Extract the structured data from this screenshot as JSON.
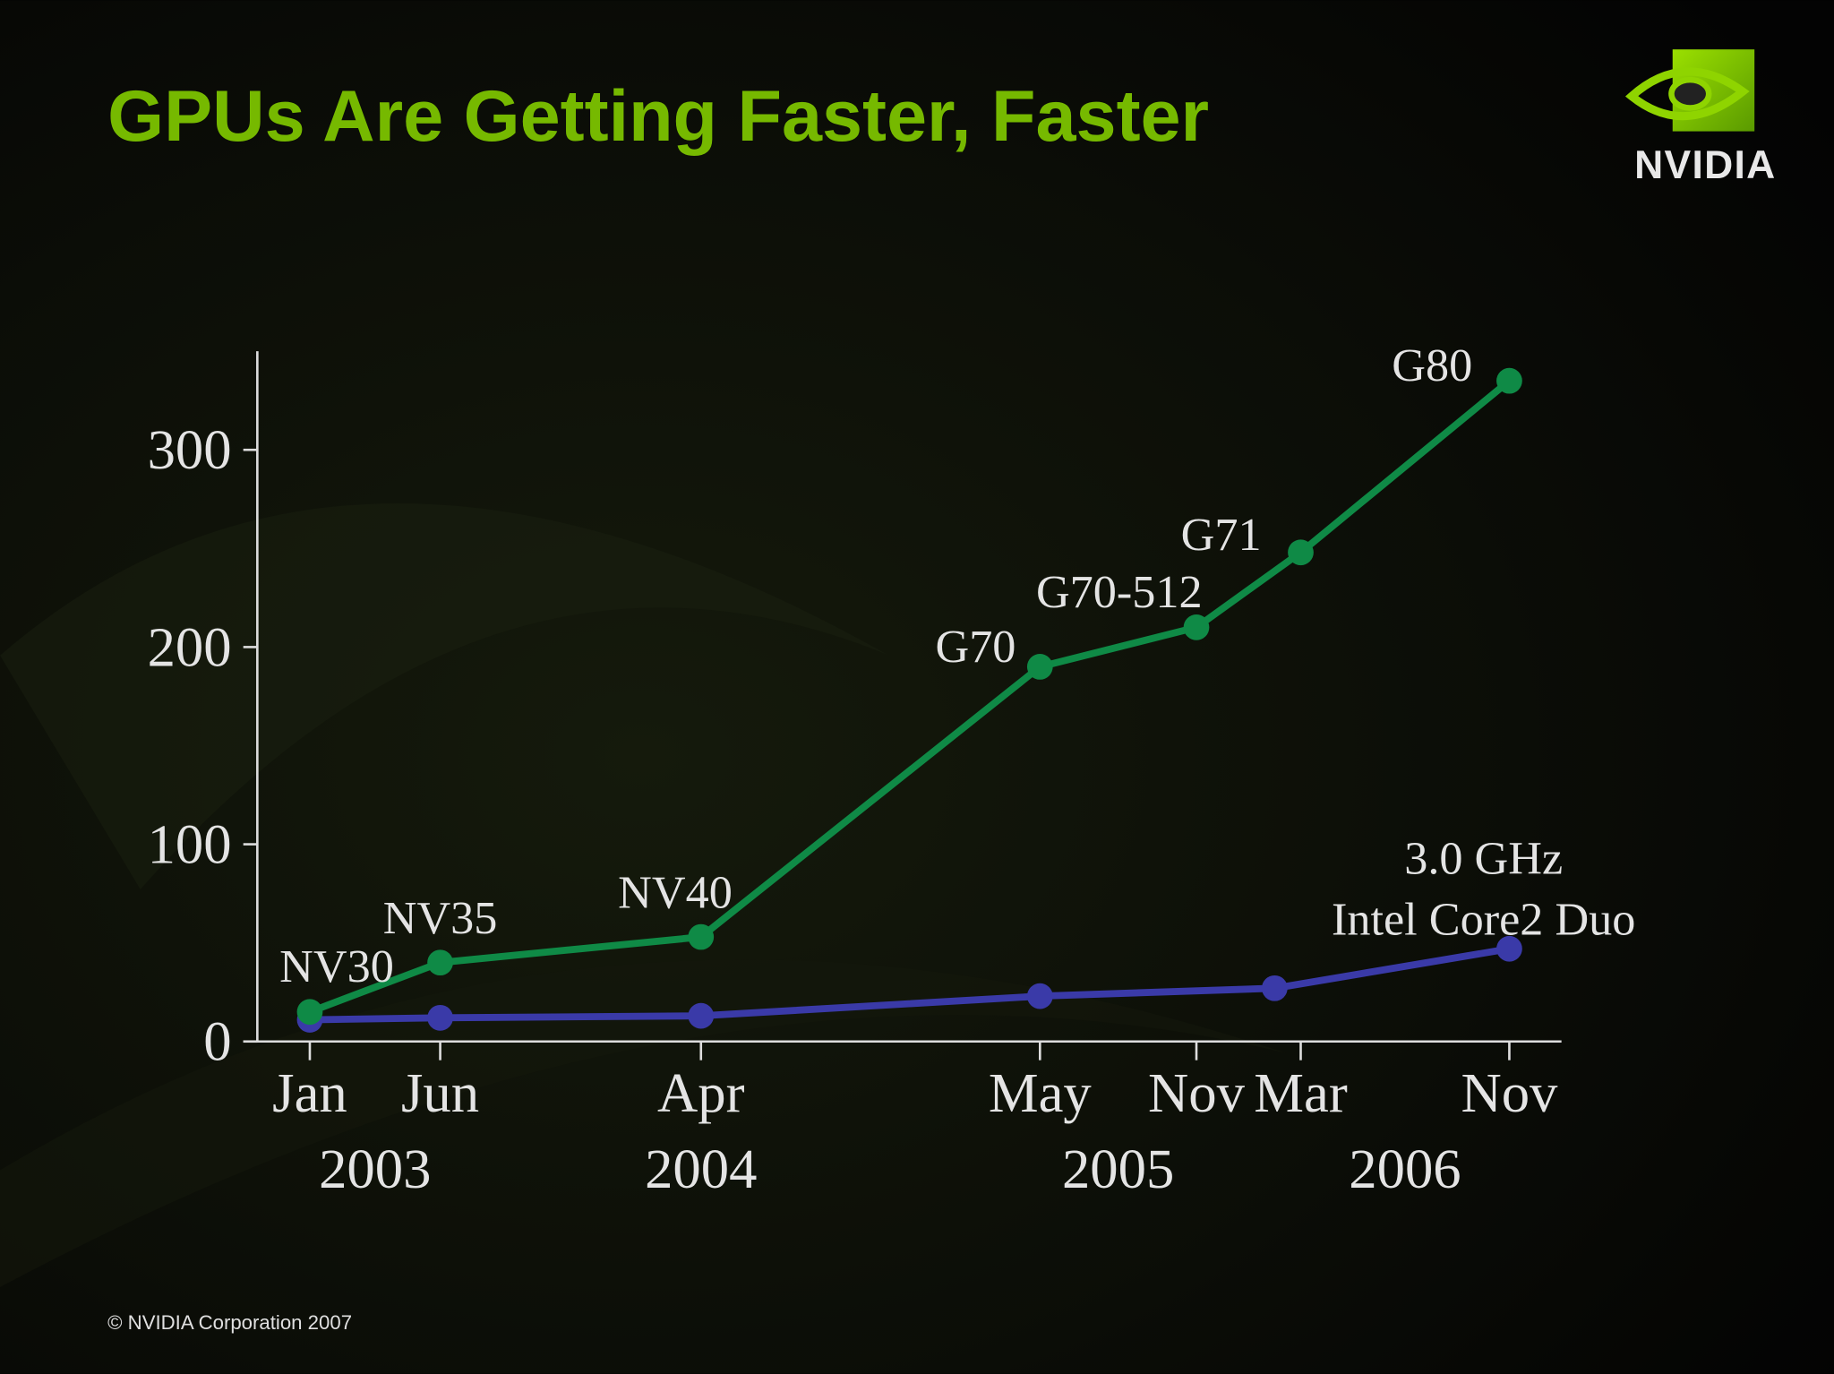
{
  "title": "GPUs Are Getting Faster, Faster",
  "logo": "NVIDIA",
  "footer": "© NVIDIA Corporation 2007",
  "chart_data": {
    "type": "line",
    "xlim": [
      "2002-10",
      "2007-01"
    ],
    "xticks": [
      {
        "value": "2003-01",
        "label": "Jan"
      },
      {
        "value": "2003-06",
        "label": "Jun"
      },
      {
        "value": "2004-04",
        "label": "Apr"
      },
      {
        "value": "2005-05",
        "label": "May"
      },
      {
        "value": "2005-11",
        "label": "Nov"
      },
      {
        "value": "2006-03",
        "label": "Mar"
      },
      {
        "value": "2006-11",
        "label": "Nov"
      }
    ],
    "years": [
      "2003",
      "2004",
      "2005",
      "2006"
    ],
    "ylim": [
      0,
      350
    ],
    "yticks": [
      0,
      100,
      200,
      300
    ],
    "series": [
      {
        "color": "#0f8a46",
        "x": [
          "2003-01",
          "2003-06",
          "2004-04",
          "2005-05",
          "2005-11",
          "2006-03",
          "2006-11"
        ],
        "values": [
          15,
          40,
          53,
          190,
          210,
          248,
          335
        ],
        "point_labels": [
          "NV30",
          "NV35",
          "NV40",
          "G70",
          "G70-512",
          "G71",
          "G80"
        ]
      },
      {
        "color": "#3a3aa8",
        "x": [
          "2003-01",
          "2003-06",
          "2004-04",
          "2005-05",
          "2006-02",
          "2006-11"
        ],
        "values": [
          11,
          12,
          13,
          23,
          27,
          47
        ],
        "annotation": [
          "3.0 GHz",
          "Intel Core2 Duo"
        ]
      }
    ]
  }
}
